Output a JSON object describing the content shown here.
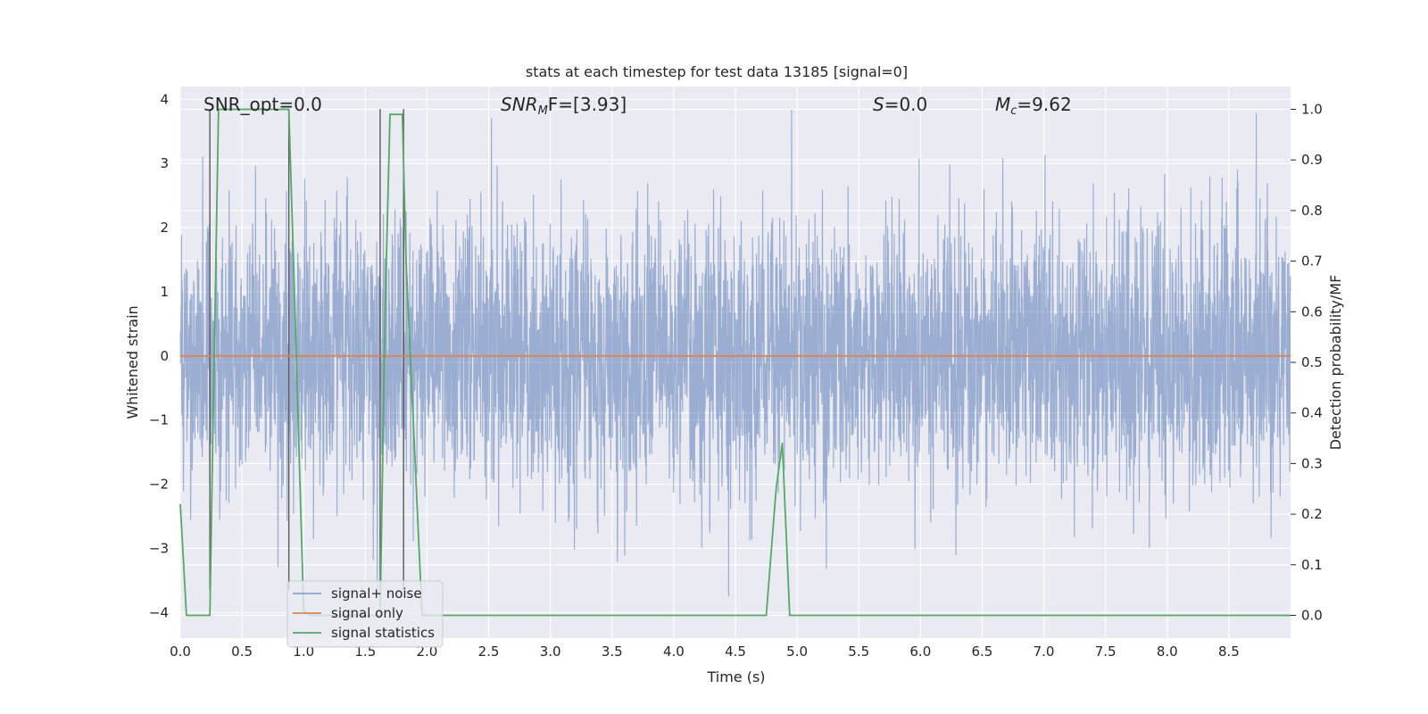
{
  "chart_data": {
    "type": "line",
    "title": "stats at each timestep for test data 13185 [signal=0]",
    "xlabel": "Time (s)",
    "ylabel": "Whitened strain",
    "y2label": "Detection probability/MF",
    "xlim": [
      0.0,
      9.0
    ],
    "ylim": [
      -4.4,
      4.2
    ],
    "y2lim": [
      -0.045,
      1.045
    ],
    "xticks": [
      "0.0",
      "0.5",
      "1.0",
      "1.5",
      "2.0",
      "2.5",
      "3.0",
      "3.5",
      "4.0",
      "4.5",
      "5.0",
      "5.5",
      "6.0",
      "6.5",
      "7.0",
      "7.5",
      "8.0",
      "8.5"
    ],
    "yticks": [
      "4",
      "3",
      "2",
      "1",
      "0",
      "−1",
      "−2",
      "−3",
      "−4"
    ],
    "y2ticks": [
      "1.0",
      "0.9",
      "0.8",
      "0.7",
      "0.6",
      "0.5",
      "0.4",
      "0.3",
      "0.2",
      "0.1",
      "0.0"
    ],
    "grid": true,
    "annotations": {
      "snr_opt": "SNR_opt=0.0",
      "snr_mf_var": "SNR",
      "snr_mf_sub": "M",
      "snr_mf_rest": "F=[3.93]",
      "s_var": "S",
      "s_rest": "=0.0",
      "mc_var": "M",
      "mc_sub": "c",
      "mc_rest": "=9.62"
    },
    "legend": {
      "placement": "lower-left",
      "entries": [
        "signal+ noise",
        "signal only",
        "signal statistics"
      ]
    },
    "colors": {
      "noise": "#4c72b0",
      "signal": "#dd8452",
      "stat": "#55a868",
      "marker": "#5a5a5a",
      "background": "#eaeaf2",
      "grid": "#ffffff"
    },
    "series": [
      {
        "name": "signal+ noise",
        "kind": "noise",
        "t_range": [
          0.0,
          9.0
        ],
        "samples": 4500,
        "std": 1.0,
        "seed": 13185
      },
      {
        "name": "signal only",
        "x": [
          0.0,
          9.0
        ],
        "y": [
          0.0,
          0.0
        ]
      },
      {
        "name": "signal statistics",
        "axis": "y2",
        "x": [
          0.0,
          0.05,
          0.24,
          0.26,
          0.31,
          0.88,
          0.93,
          1.0,
          1.05,
          1.62,
          1.66,
          1.7,
          1.8,
          1.83,
          1.96,
          2.0,
          4.75,
          4.83,
          4.88,
          4.94,
          4.98,
          5.05,
          9.0
        ],
        "y": [
          0.22,
          0.0,
          0.0,
          0.3,
          1.0,
          1.0,
          0.6,
          0.01,
          0.0,
          0.0,
          0.6,
          0.99,
          0.99,
          0.7,
          0.0,
          0.0,
          0.0,
          0.25,
          0.34,
          0.0,
          0.0,
          0.0,
          0.0
        ]
      }
    ],
    "markers": {
      "x": [
        0.24,
        0.88,
        1.62,
        1.81
      ],
      "y_bottom": -3.65,
      "y_top": 3.85
    }
  }
}
